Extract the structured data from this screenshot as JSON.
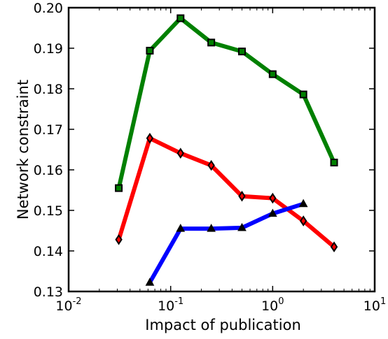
{
  "chart_data": {
    "type": "line",
    "xlabel": "Impact of publication",
    "ylabel": "Network constraint",
    "xscale": "log",
    "xlim": [
      0.01,
      10
    ],
    "ylim": [
      0.13,
      0.2
    ],
    "grid": false,
    "x_ticks": [
      {
        "value": 0.01,
        "base": "10",
        "exp": "-2"
      },
      {
        "value": 0.1,
        "base": "10",
        "exp": "-1"
      },
      {
        "value": 1,
        "base": "10",
        "exp": "0"
      },
      {
        "value": 10,
        "base": "10",
        "exp": "1"
      }
    ],
    "y_ticks": [
      {
        "value": 0.13,
        "label": "0.13"
      },
      {
        "value": 0.14,
        "label": "0.14"
      },
      {
        "value": 0.15,
        "label": "0.15"
      },
      {
        "value": 0.16,
        "label": "0.16"
      },
      {
        "value": 0.17,
        "label": "0.17"
      },
      {
        "value": 0.18,
        "label": "0.18"
      },
      {
        "value": 0.19,
        "label": "0.19"
      },
      {
        "value": 0.2,
        "label": "0.20"
      }
    ],
    "series": [
      {
        "color": "#008000",
        "marker": "square",
        "x": [
          0.031,
          0.0625,
          0.125,
          0.25,
          0.5,
          1.0,
          2.0,
          4.0
        ],
        "y": [
          0.1555,
          0.1894,
          0.1974,
          0.1914,
          0.1892,
          0.1836,
          0.1786,
          0.1618
        ]
      },
      {
        "color": "#ff0000",
        "marker": "diamond",
        "x": [
          0.031,
          0.0625,
          0.125,
          0.25,
          0.5,
          1.0,
          2.0,
          4.0
        ],
        "y": [
          0.1428,
          0.1678,
          0.1641,
          0.1611,
          0.1535,
          0.153,
          0.1474,
          0.141
        ]
      },
      {
        "color": "#0000ff",
        "marker": "triangle",
        "x": [
          0.0625,
          0.125,
          0.25,
          0.5,
          1.0,
          2.0
        ],
        "y": [
          0.1322,
          0.1455,
          0.1455,
          0.1457,
          0.1492,
          0.1516
        ]
      }
    ]
  }
}
